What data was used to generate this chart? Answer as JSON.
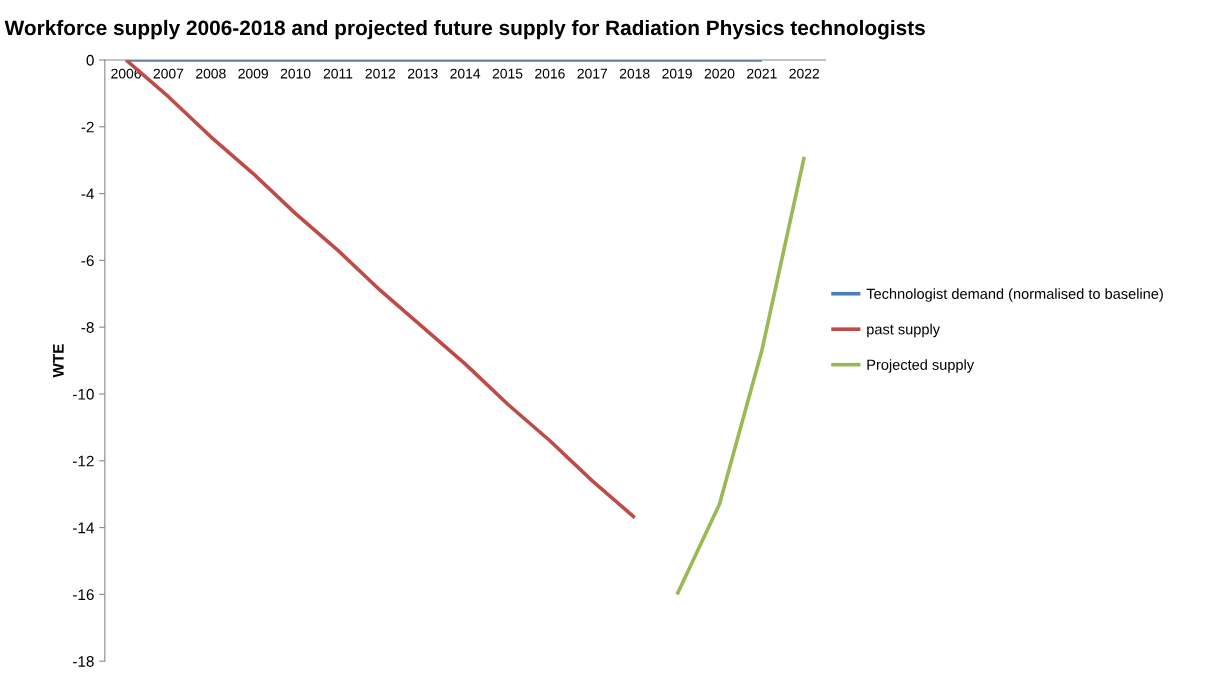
{
  "chart_data": {
    "type": "line",
    "title": "Workforce supply 2006-2018 and projected future supply for Radiation Physics technologists",
    "ylabel": "WTE",
    "categories": [
      "2006",
      "2007",
      "2008",
      "2009",
      "2010",
      "2011",
      "2012",
      "2013",
      "2014",
      "2015",
      "2016",
      "2017",
      "2018",
      "2019",
      "2020",
      "2021",
      "2022"
    ],
    "series": [
      {
        "name": "Technologist demand (normalised to baseline)",
        "color": "#4a7ebb",
        "values": [
          0,
          0,
          0,
          0,
          0,
          0,
          0,
          0,
          0,
          0,
          0,
          0,
          0,
          0,
          0,
          0,
          null
        ]
      },
      {
        "name": "past supply",
        "color": "#be4b48",
        "values": [
          0,
          -1.1,
          -2.3,
          -3.4,
          -4.6,
          -5.7,
          -6.9,
          -8.0,
          -9.1,
          -10.3,
          -11.4,
          -12.6,
          -13.7,
          null,
          null,
          null,
          null
        ]
      },
      {
        "name": "Projected supply",
        "color": "#98b954",
        "values": [
          null,
          null,
          null,
          null,
          null,
          null,
          null,
          null,
          null,
          null,
          null,
          null,
          null,
          -16.0,
          -13.3,
          -8.7,
          -2.9
        ]
      }
    ],
    "ylim": [
      -18,
      0
    ],
    "yticks": [
      0,
      -2,
      -4,
      -6,
      -8,
      -10,
      -12,
      -14,
      -16,
      -18
    ],
    "grid": false,
    "legend": "right",
    "marker": "none",
    "line_style": "solid"
  }
}
